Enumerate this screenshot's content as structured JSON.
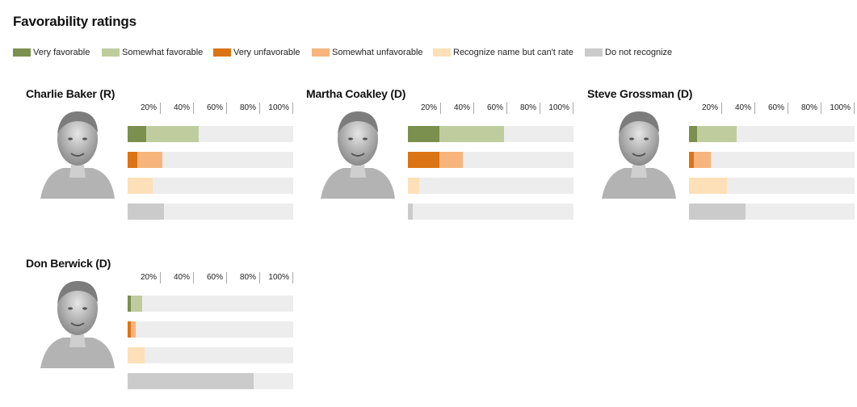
{
  "title": "Favorability ratings",
  "legend": [
    {
      "key": "very_fav",
      "label": "Very favorable",
      "color": "#7b8f4e"
    },
    {
      "key": "some_fav",
      "label": "Somewhat favorable",
      "color": "#bfcd9e"
    },
    {
      "key": "very_unfav",
      "label": "Very unfavorable",
      "color": "#db7414"
    },
    {
      "key": "some_unfav",
      "label": "Somewhat unfavorable",
      "color": "#f7b47c"
    },
    {
      "key": "recognize",
      "label": "Recognize name but can't rate",
      "color": "#fde0b8"
    },
    {
      "key": "no_recognize",
      "label": "Do not recognize",
      "color": "#cbcbcb"
    }
  ],
  "chart_data": {
    "type": "bar",
    "xlim": [
      0,
      100
    ],
    "tick_labels": [
      "20%",
      "40%",
      "60%",
      "80%",
      "100%"
    ],
    "panels": [
      {
        "name": "Charlie Baker (R)",
        "portrait_icon": "candidate-portrait",
        "very_favorable": 11,
        "somewhat_favorable": 32,
        "very_unfavorable": 6,
        "somewhat_unfavorable": 15,
        "recognize_cant_rate": 15,
        "do_not_recognize": 22
      },
      {
        "name": "Martha Coakley (D)",
        "portrait_icon": "candidate-portrait",
        "very_favorable": 19,
        "somewhat_favorable": 39,
        "very_unfavorable": 19,
        "somewhat_unfavorable": 14,
        "recognize_cant_rate": 7,
        "do_not_recognize": 3
      },
      {
        "name": "Steve Grossman (D)",
        "portrait_icon": "candidate-portrait",
        "very_favorable": 5,
        "somewhat_favorable": 24,
        "very_unfavorable": 3,
        "somewhat_unfavorable": 10,
        "recognize_cant_rate": 23,
        "do_not_recognize": 34
      },
      {
        "name": "Don Berwick (D)",
        "portrait_icon": "candidate-portrait",
        "very_favorable": 2,
        "somewhat_favorable": 7,
        "very_unfavorable": 2,
        "somewhat_unfavorable": 3,
        "recognize_cant_rate": 10,
        "do_not_recognize": 76
      }
    ]
  }
}
